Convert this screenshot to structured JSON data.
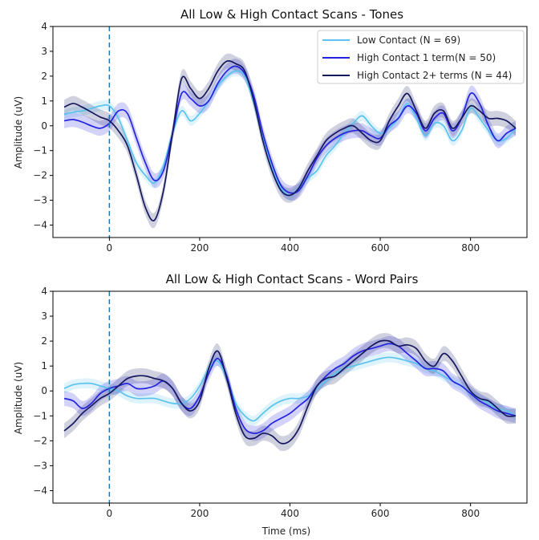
{
  "colors": {
    "low_contact": "#5bc3ee",
    "high_1": "#2323e0",
    "high_2plus": "#16185e",
    "stimulus_line": "#1f77b4"
  },
  "chart_data": [
    {
      "type": "line",
      "title": "All Low & High Contact Scans - Tones",
      "xlabel": "",
      "ylabel": "Amplitude (uV)",
      "xlim": [
        -125,
        925
      ],
      "ylim": [
        -4.5,
        4
      ],
      "xticks": [
        "0",
        "200",
        "400",
        "600",
        "800"
      ],
      "yticks": [
        "4",
        "3",
        "2",
        "1",
        "0",
        "−1",
        "−2",
        "−3",
        "−4"
      ],
      "stimulus_onset_x": 0,
      "legend_placement": "top-right",
      "series": [
        {
          "name": "Low Contact (N = 69)",
          "x": [
            -100,
            -80,
            -60,
            -40,
            -20,
            0,
            20,
            40,
            60,
            80,
            100,
            120,
            140,
            160,
            180,
            200,
            220,
            240,
            260,
            280,
            300,
            320,
            340,
            360,
            380,
            400,
            420,
            440,
            460,
            480,
            500,
            520,
            540,
            560,
            580,
            600,
            620,
            640,
            660,
            680,
            700,
            720,
            740,
            760,
            780,
            800,
            820,
            840,
            860,
            880,
            900
          ],
          "y": [
            0.45,
            0.55,
            0.6,
            0.7,
            0.8,
            0.8,
            0.3,
            -0.6,
            -1.5,
            -2.0,
            -2.3,
            -1.6,
            -0.3,
            0.6,
            0.2,
            0.5,
            1.0,
            1.6,
            2.0,
            2.2,
            2.0,
            0.9,
            -0.5,
            -1.7,
            -2.5,
            -2.8,
            -2.5,
            -2.1,
            -1.8,
            -1.2,
            -0.8,
            -0.3,
            0.1,
            0.4,
            0.0,
            -0.3,
            -0.1,
            0.3,
            0.9,
            0.3,
            -0.4,
            0.1,
            0.0,
            -0.6,
            -0.2,
            0.7,
            0.3,
            -0.2,
            -0.6,
            -0.5,
            -0.1
          ],
          "band": 0.2
        },
        {
          "name": "High Contact 1 term(N = 50)",
          "x": [
            -100,
            -80,
            -60,
            -40,
            -20,
            0,
            20,
            40,
            60,
            80,
            100,
            120,
            140,
            160,
            180,
            200,
            220,
            240,
            260,
            280,
            300,
            320,
            340,
            360,
            380,
            400,
            420,
            440,
            460,
            480,
            500,
            520,
            540,
            560,
            580,
            600,
            620,
            640,
            660,
            680,
            700,
            720,
            740,
            760,
            780,
            800,
            820,
            840,
            860,
            880,
            900
          ],
          "y": [
            0.2,
            0.25,
            0.15,
            0.0,
            -0.1,
            0.1,
            0.6,
            0.5,
            -0.5,
            -1.5,
            -2.2,
            -1.8,
            -0.3,
            1.3,
            1.1,
            0.8,
            1.0,
            1.7,
            2.2,
            2.4,
            2.1,
            1.2,
            -0.3,
            -1.5,
            -2.4,
            -2.7,
            -2.6,
            -2.0,
            -1.3,
            -0.8,
            -0.5,
            -0.3,
            -0.2,
            -0.2,
            -0.4,
            -0.5,
            0.0,
            0.3,
            0.8,
            0.5,
            -0.2,
            0.3,
            0.5,
            -0.2,
            0.3,
            1.3,
            0.9,
            0.0,
            -0.6,
            -0.3,
            -0.1
          ],
          "band": 0.3
        },
        {
          "name": "High Contact 2+ terms (N = 44)",
          "x": [
            -100,
            -80,
            -60,
            -40,
            -20,
            0,
            20,
            40,
            60,
            80,
            100,
            120,
            140,
            160,
            180,
            200,
            220,
            240,
            260,
            280,
            300,
            320,
            340,
            360,
            380,
            400,
            420,
            440,
            460,
            480,
            500,
            520,
            540,
            560,
            580,
            600,
            620,
            640,
            660,
            680,
            700,
            720,
            740,
            760,
            780,
            800,
            820,
            840,
            860,
            880,
            900
          ],
          "y": [
            0.75,
            0.9,
            0.75,
            0.55,
            0.35,
            0.2,
            -0.2,
            -0.8,
            -2.0,
            -3.3,
            -3.8,
            -2.6,
            -0.3,
            1.9,
            1.5,
            1.1,
            1.5,
            2.2,
            2.6,
            2.5,
            2.2,
            1.0,
            -0.6,
            -1.8,
            -2.6,
            -2.8,
            -2.5,
            -1.8,
            -1.2,
            -0.6,
            -0.3,
            -0.1,
            0.0,
            -0.3,
            -0.6,
            -0.6,
            0.2,
            0.8,
            1.3,
            0.6,
            -0.1,
            0.5,
            0.6,
            -0.1,
            0.3,
            0.8,
            0.6,
            0.3,
            0.3,
            0.2,
            -0.1
          ],
          "band": 0.3
        }
      ]
    },
    {
      "type": "line",
      "title": "All Low & High Contact Scans - Word Pairs",
      "xlabel": "Time (ms)",
      "ylabel": "Amplitude (uV)",
      "xlim": [
        -125,
        925
      ],
      "ylim": [
        -4.5,
        4
      ],
      "xticks": [
        "0",
        "200",
        "400",
        "600",
        "800"
      ],
      "yticks": [
        "4",
        "3",
        "2",
        "1",
        "0",
        "−1",
        "−2",
        "−3",
        "−4"
      ],
      "stimulus_onset_x": 0,
      "legend_placement": "none",
      "series": [
        {
          "name": "Low Contact (N = 69)",
          "x": [
            -100,
            -80,
            -60,
            -40,
            -20,
            0,
            20,
            40,
            60,
            80,
            100,
            120,
            140,
            160,
            180,
            200,
            220,
            240,
            260,
            280,
            300,
            320,
            340,
            360,
            380,
            400,
            420,
            440,
            460,
            480,
            500,
            520,
            540,
            560,
            580,
            600,
            620,
            640,
            660,
            680,
            700,
            720,
            740,
            760,
            780,
            800,
            820,
            840,
            860,
            880,
            900
          ],
          "y": [
            0.1,
            0.25,
            0.3,
            0.3,
            0.2,
            0.1,
            0.0,
            -0.2,
            -0.3,
            -0.3,
            -0.3,
            -0.4,
            -0.5,
            -0.5,
            -0.3,
            0.2,
            0.9,
            1.2,
            0.5,
            -0.5,
            -1.0,
            -1.2,
            -0.9,
            -0.6,
            -0.4,
            -0.3,
            -0.3,
            -0.2,
            0.1,
            0.4,
            0.7,
            0.9,
            1.0,
            1.1,
            1.2,
            1.3,
            1.35,
            1.3,
            1.2,
            1.1,
            0.9,
            0.8,
            0.6,
            0.4,
            0.2,
            -0.1,
            -0.3,
            -0.5,
            -0.7,
            -0.8,
            -1.0
          ],
          "band": 0.2
        },
        {
          "name": "High Contact 1 term(N = 50)",
          "x": [
            -100,
            -80,
            -60,
            -40,
            -20,
            0,
            20,
            40,
            60,
            80,
            100,
            120,
            140,
            160,
            180,
            200,
            220,
            240,
            260,
            280,
            300,
            320,
            340,
            360,
            380,
            400,
            420,
            440,
            460,
            480,
            500,
            520,
            540,
            560,
            580,
            600,
            620,
            640,
            660,
            680,
            700,
            720,
            740,
            760,
            780,
            800,
            820,
            840,
            860,
            880,
            900
          ],
          "y": [
            -0.3,
            -0.4,
            -0.7,
            -0.5,
            -0.1,
            0.1,
            0.2,
            0.3,
            0.1,
            0.1,
            0.2,
            0.4,
            0.1,
            -0.5,
            -0.7,
            -0.2,
            0.7,
            1.3,
            0.6,
            -0.7,
            -1.5,
            -1.7,
            -1.6,
            -1.3,
            -1.1,
            -0.9,
            -0.6,
            -0.3,
            0.2,
            0.6,
            0.9,
            1.1,
            1.4,
            1.6,
            1.7,
            1.8,
            1.9,
            1.8,
            1.5,
            1.2,
            0.9,
            0.9,
            0.8,
            0.4,
            0.2,
            -0.1,
            -0.4,
            -0.6,
            -0.8,
            -0.9,
            -1.0
          ],
          "band": 0.3
        },
        {
          "name": "High Contact 2+ terms (N = 44)",
          "x": [
            -100,
            -80,
            -60,
            -40,
            -20,
            0,
            20,
            40,
            60,
            80,
            100,
            120,
            140,
            160,
            180,
            200,
            220,
            240,
            260,
            280,
            300,
            320,
            340,
            360,
            380,
            400,
            420,
            440,
            460,
            480,
            500,
            520,
            540,
            560,
            580,
            600,
            620,
            640,
            660,
            680,
            700,
            720,
            740,
            760,
            780,
            800,
            820,
            840,
            860,
            880,
            900
          ],
          "y": [
            -1.6,
            -1.3,
            -0.9,
            -0.6,
            -0.3,
            -0.1,
            0.2,
            0.5,
            0.6,
            0.6,
            0.5,
            0.4,
            0.1,
            -0.5,
            -0.8,
            -0.4,
            0.9,
            1.6,
            0.5,
            -0.9,
            -1.8,
            -1.9,
            -1.7,
            -1.8,
            -2.1,
            -2.0,
            -1.5,
            -0.6,
            0.2,
            0.5,
            0.6,
            0.9,
            1.2,
            1.5,
            1.8,
            2.0,
            2.0,
            1.8,
            1.85,
            1.7,
            1.2,
            1.0,
            1.5,
            1.2,
            0.6,
            0.0,
            -0.3,
            -0.4,
            -0.7,
            -1.0,
            -1.0
          ],
          "band": 0.3
        }
      ]
    }
  ]
}
